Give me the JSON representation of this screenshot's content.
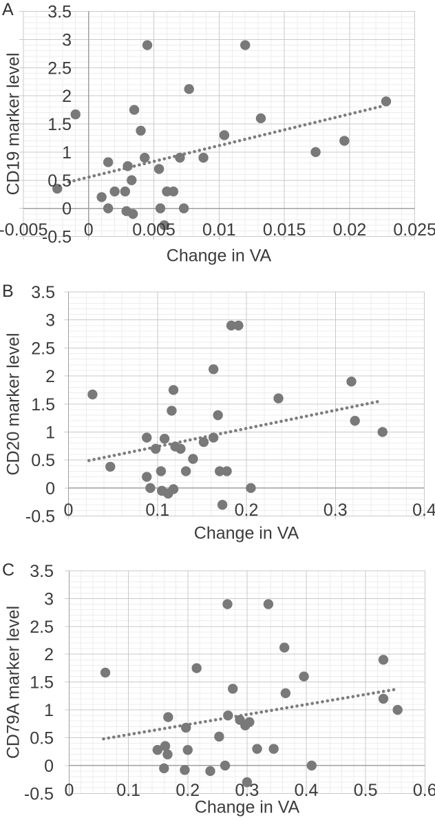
{
  "figure": {
    "description": "Scatter plots of B-cell marker levels versus change in VA",
    "panels": [
      "A",
      "B",
      "C"
    ]
  },
  "colors": {
    "background": "#ffffff",
    "point": "#797979",
    "trend": "#7d7d7d",
    "grid_major": "#c9c9c9",
    "grid_minor": "#ececec",
    "axis": "#9f9f9f",
    "text": "#3b3b3b"
  },
  "chart_data": [
    {
      "type": "scatter",
      "panel_label": "A",
      "xlabel": "Change in VA",
      "ylabel": "CD19 marker level",
      "xlim": [
        -0.005,
        0.025
      ],
      "ylim": [
        -0.5,
        3.5
      ],
      "x_major_step": 0.005,
      "x_minor_step": 0.001,
      "y_major_step": 0.5,
      "y_minor_step": 0.1,
      "x_tick_labels": [
        "-0.005",
        "0",
        "0.005",
        "0.01",
        "0.015",
        "0.02",
        "0.025"
      ],
      "y_tick_labels": [
        "3.5",
        "3",
        "2.5",
        "2",
        "1.5",
        "1",
        "0.5",
        "0",
        "-0.5"
      ],
      "grid": "minor+major",
      "legend": "none",
      "points": [
        [
          -0.0024,
          0.35
        ],
        [
          -0.001,
          1.67
        ],
        [
          0.001,
          0.2
        ],
        [
          0.0015,
          0.82
        ],
        [
          0.0015,
          0
        ],
        [
          0.002,
          0.3
        ],
        [
          0.0028,
          0.3
        ],
        [
          0.003,
          0.75
        ],
        [
          0.0033,
          0.5
        ],
        [
          0.0029,
          -0.05
        ],
        [
          0.0034,
          -0.1
        ],
        [
          0.0035,
          1.75
        ],
        [
          0.004,
          1.38
        ],
        [
          0.0043,
          0.9
        ],
        [
          0.0045,
          2.9
        ],
        [
          0.0054,
          0.7
        ],
        [
          0.0055,
          0
        ],
        [
          0.0058,
          -0.3
        ],
        [
          0.006,
          0.3
        ],
        [
          0.0065,
          0.3
        ],
        [
          0.007,
          0.9
        ],
        [
          0.0073,
          0
        ],
        [
          0.0077,
          2.12
        ],
        [
          0.0088,
          0.9
        ],
        [
          0.0104,
          1.3
        ],
        [
          0.012,
          2.9
        ],
        [
          0.0132,
          1.6
        ],
        [
          0.0174,
          1
        ],
        [
          0.0196,
          1.2
        ],
        [
          0.0228,
          1.9
        ]
      ],
      "trendline": {
        "style": "dotted",
        "x1": -0.0015,
        "y1": 0.47,
        "x2": 0.0224,
        "y2": 1.81
      }
    },
    {
      "type": "scatter",
      "panel_label": "B",
      "xlabel": "Change in VA",
      "ylabel": "CD20 marker level",
      "xlim": [
        0,
        0.4
      ],
      "ylim": [
        -0.5,
        3.5
      ],
      "x_major_step": 0.1,
      "x_minor_step": 0.02,
      "y_major_step": 0.5,
      "y_minor_step": 0.1,
      "x_tick_labels": [
        "0",
        "0.1",
        "0.2",
        "0.3",
        "0.4"
      ],
      "y_tick_labels": [
        "3.5",
        "3",
        "2.5",
        "2",
        "1.5",
        "1",
        "0.5",
        "0",
        "-0.5"
      ],
      "grid": "minor+major",
      "legend": "none",
      "points": [
        [
          0.027,
          1.67
        ],
        [
          0.047,
          0.38
        ],
        [
          0.088,
          0.9
        ],
        [
          0.088,
          0.2
        ],
        [
          0.092,
          0
        ],
        [
          0.098,
          0.7
        ],
        [
          0.104,
          0.3
        ],
        [
          0.108,
          0.88
        ],
        [
          0.105,
          -0.05
        ],
        [
          0.112,
          -0.1
        ],
        [
          0.118,
          -0.02
        ],
        [
          0.116,
          1.38
        ],
        [
          0.118,
          1.75
        ],
        [
          0.12,
          0.74
        ],
        [
          0.126,
          0.7
        ],
        [
          0.132,
          0.3
        ],
        [
          0.14,
          0.52
        ],
        [
          0.152,
          0.82
        ],
        [
          0.163,
          2.12
        ],
        [
          0.163,
          0.9
        ],
        [
          0.168,
          1.3
        ],
        [
          0.17,
          0.3
        ],
        [
          0.178,
          0.3
        ],
        [
          0.173,
          -0.3
        ],
        [
          0.183,
          2.9
        ],
        [
          0.191,
          2.9
        ],
        [
          0.205,
          0
        ],
        [
          0.236,
          1.6
        ],
        [
          0.318,
          1.9
        ],
        [
          0.322,
          1.2
        ],
        [
          0.353,
          1
        ]
      ],
      "trendline": {
        "style": "dotted",
        "x1": 0.023,
        "y1": 0.49,
        "x2": 0.35,
        "y2": 1.55
      }
    },
    {
      "type": "scatter",
      "panel_label": "C",
      "xlabel": "Change in VA",
      "ylabel": "CD79A marker level",
      "xlim": [
        0,
        0.6
      ],
      "ylim": [
        -0.5,
        3.5
      ],
      "x_major_step": 0.1,
      "x_minor_step": 0.02,
      "y_major_step": 0.5,
      "y_minor_step": 0.1,
      "x_tick_labels": [
        "0",
        "0.1",
        "0.2",
        "0.3",
        "0.4",
        "0.5",
        "0.6"
      ],
      "y_tick_labels": [
        "3.5",
        "3",
        "2.5",
        "2",
        "1.5",
        "1",
        "0.5",
        "0",
        "-0.5"
      ],
      "grid": "minor+major",
      "legend": "none",
      "points": [
        [
          0.061,
          1.67
        ],
        [
          0.149,
          0.28
        ],
        [
          0.162,
          0.35
        ],
        [
          0.166,
          0.2
        ],
        [
          0.16,
          -0.05
        ],
        [
          0.167,
          0.87
        ],
        [
          0.195,
          -0.08
        ],
        [
          0.2,
          0.28
        ],
        [
          0.197,
          0.68
        ],
        [
          0.215,
          1.75
        ],
        [
          0.238,
          -0.1
        ],
        [
          0.253,
          0.52
        ],
        [
          0.267,
          2.9
        ],
        [
          0.276,
          1.38
        ],
        [
          0.268,
          0.9
        ],
        [
          0.263,
          0
        ],
        [
          0.288,
          0.82
        ],
        [
          0.297,
          0.72
        ],
        [
          0.304,
          0.78
        ],
        [
          0.3,
          -0.3
        ],
        [
          0.317,
          0.3
        ],
        [
          0.345,
          0.3
        ],
        [
          0.336,
          2.9
        ],
        [
          0.363,
          2.12
        ],
        [
          0.365,
          1.3
        ],
        [
          0.396,
          1.6
        ],
        [
          0.409,
          0
        ],
        [
          0.53,
          1.9
        ],
        [
          0.53,
          1.2
        ],
        [
          0.554,
          1
        ]
      ],
      "trendline": {
        "style": "dotted",
        "x1": 0.058,
        "y1": 0.48,
        "x2": 0.551,
        "y2": 1.37
      }
    }
  ]
}
